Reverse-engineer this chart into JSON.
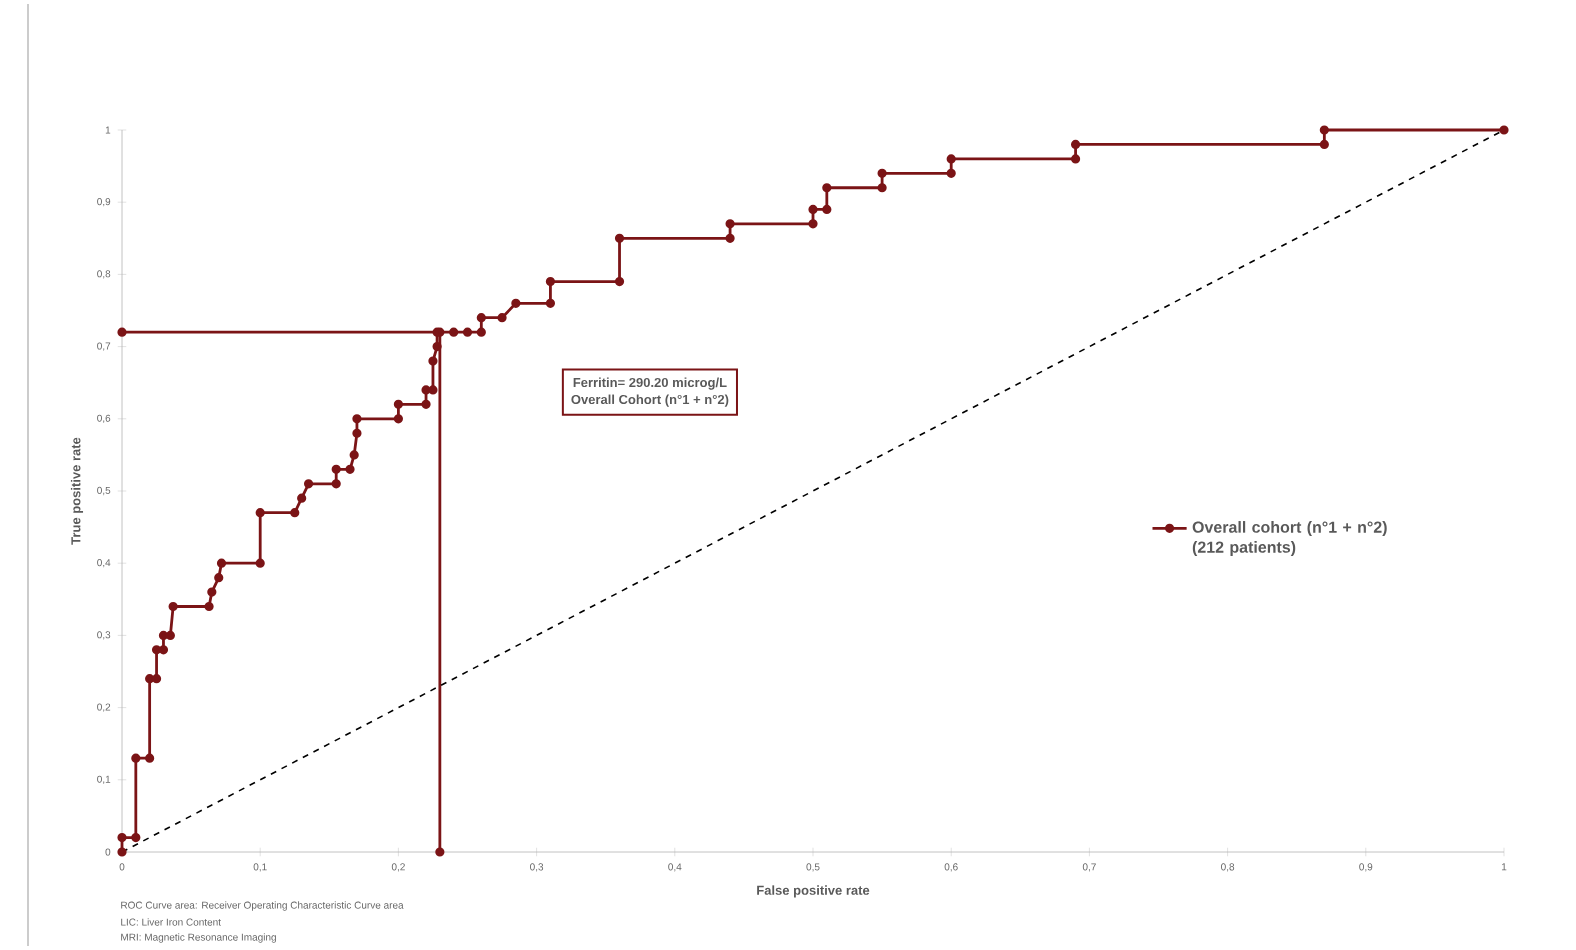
{
  "chart_data": {
    "type": "line",
    "xlabel": "False positive rate",
    "ylabel": "True positive rate",
    "xlim": [
      0,
      1
    ],
    "ylim": [
      0,
      1
    ],
    "xticks": [
      0,
      {
        "value": 0.1,
        "label": "0,1"
      },
      {
        "value": 0.2,
        "label": "0,2"
      },
      {
        "value": 0.3,
        "label": "0,3"
      },
      {
        "value": 0.4,
        "label": "0,4"
      },
      {
        "value": 0.5,
        "label": "0,5"
      },
      {
        "value": 0.6,
        "label": "0,6"
      },
      {
        "value": 0.7,
        "label": "0,7"
      },
      {
        "value": 0.8,
        "label": "0,8"
      },
      {
        "value": 0.9,
        "label": "0,9"
      },
      1
    ],
    "yticks": [
      0,
      {
        "value": 0.1,
        "label": "0,1"
      },
      {
        "value": 0.2,
        "label": "0,2"
      },
      {
        "value": 0.3,
        "label": "0,3"
      },
      {
        "value": 0.4,
        "label": "0,4"
      },
      {
        "value": 0.5,
        "label": "0,5"
      },
      {
        "value": 0.6,
        "label": "0,6"
      },
      {
        "value": 0.7,
        "label": "0,7"
      },
      {
        "value": 0.8,
        "label": "0,8"
      },
      {
        "value": 0.9,
        "label": "0,9"
      },
      1
    ],
    "grid": false,
    "legend": "right",
    "series": [
      {
        "name": "Overall cohort (n°1 + n°2) (212 patients)",
        "color": "#7b1416",
        "marker": "circle",
        "line_style": "solid",
        "x": [
          0,
          0,
          0.01,
          0.01,
          0.02,
          0.02,
          0.025,
          0.025,
          0.03,
          0.03,
          0.035,
          0.037,
          0.063,
          0.065,
          0.07,
          0.072,
          0.1,
          0.1,
          0.125,
          0.13,
          0.135,
          0.155,
          0.155,
          0.165,
          0.168,
          0.17,
          0.17,
          0.2,
          0.2,
          0.22,
          0.22,
          0.225,
          0.225,
          0.228,
          0.228,
          0.24,
          0.25,
          0.26,
          0.26,
          0.275,
          0.285,
          0.31,
          0.31,
          0.36,
          0.36,
          0.44,
          0.44,
          0.5,
          0.5,
          0.51,
          0.51,
          0.55,
          0.55,
          0.6,
          0.6,
          0.69,
          0.69,
          0.87,
          0.87,
          1
        ],
        "values": [
          0,
          0.02,
          0.02,
          0.13,
          0.13,
          0.24,
          0.24,
          0.28,
          0.28,
          0.3,
          0.3,
          0.34,
          0.34,
          0.36,
          0.38,
          0.4,
          0.4,
          0.47,
          0.47,
          0.49,
          0.51,
          0.51,
          0.53,
          0.53,
          0.55,
          0.58,
          0.6,
          0.6,
          0.62,
          0.62,
          0.64,
          0.64,
          0.68,
          0.7,
          0.72,
          0.72,
          0.72,
          0.72,
          0.74,
          0.74,
          0.76,
          0.76,
          0.79,
          0.79,
          0.85,
          0.85,
          0.87,
          0.87,
          0.89,
          0.89,
          0.92,
          0.92,
          0.94,
          0.94,
          0.96,
          0.96,
          0.98,
          0.98,
          1,
          1
        ]
      },
      {
        "color": "#7b1416",
        "marker": "circle",
        "line_style": "solid",
        "x": [
          0,
          0.23,
          0.23
        ],
        "values": [
          0.72,
          0.72,
          0
        ]
      },
      {
        "color": "#000000",
        "marker": "none",
        "line_style": "dashed",
        "x": [
          0,
          1
        ],
        "values": [
          0,
          1
        ]
      }
    ],
    "annotations": [
      "Ferritin= 290.20 microg/L",
      "Overall Cohort (n°1 + n°2)",
      "ROC Curve area: Receiver Operating Characteristic Curve area",
      "LIC: Liver Iron Content",
      "MRI: Magnetic Resonance Imaging"
    ]
  }
}
